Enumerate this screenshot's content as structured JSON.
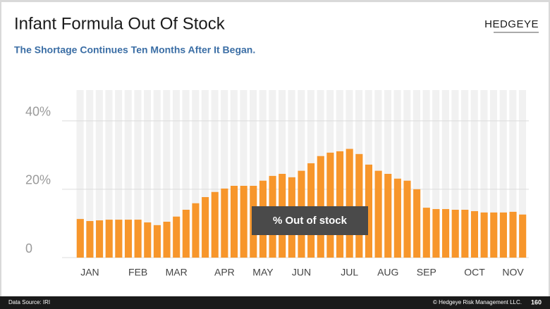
{
  "slide": {
    "logo": "HEDGEYE",
    "source": "Data Source: IRI",
    "copyright": "© Hedgeye Risk Management LLC.",
    "page": "160"
  },
  "chart_data": {
    "type": "bar",
    "title": "Infant Formula Out Of Stock",
    "subtitle": "The Shortage Continues Ten Months After It Began.",
    "annotation": "% Out of stock",
    "color": "#f7962b",
    "categories": [
      null,
      "JAN",
      null,
      null,
      null,
      null,
      "FEB",
      null,
      null,
      null,
      "MAR",
      null,
      null,
      null,
      null,
      "APR",
      null,
      null,
      null,
      "MAY",
      null,
      null,
      null,
      "JUN",
      null,
      null,
      null,
      null,
      "JUL",
      null,
      null,
      null,
      "AUG",
      null,
      null,
      null,
      "SEP",
      null,
      null,
      null,
      null,
      "OCT",
      null,
      null,
      null,
      "NOV",
      null
    ],
    "values": [
      11.3,
      10.7,
      10.9,
      11.1,
      11.1,
      11.1,
      11.1,
      10.3,
      9.5,
      10.5,
      12,
      14,
      15.9,
      17.7,
      19.2,
      20.2,
      21,
      21,
      21,
      22.5,
      23.9,
      24.5,
      23.5,
      25.4,
      27.6,
      29.7,
      30.7,
      31.1,
      31.8,
      30.3,
      27.2,
      25.4,
      24.5,
      23.1,
      22.5,
      20,
      14.6,
      14.2,
      14.2,
      14,
      14,
      13.6,
      13.2,
      13.2,
      13.2,
      13.4,
      12.6
    ],
    "ylim": [
      0,
      49
    ],
    "yticks": [
      0,
      {
        "value": 20,
        "label": "20%"
      },
      {
        "value": 40,
        "label": "40%"
      }
    ],
    "grid": true
  }
}
